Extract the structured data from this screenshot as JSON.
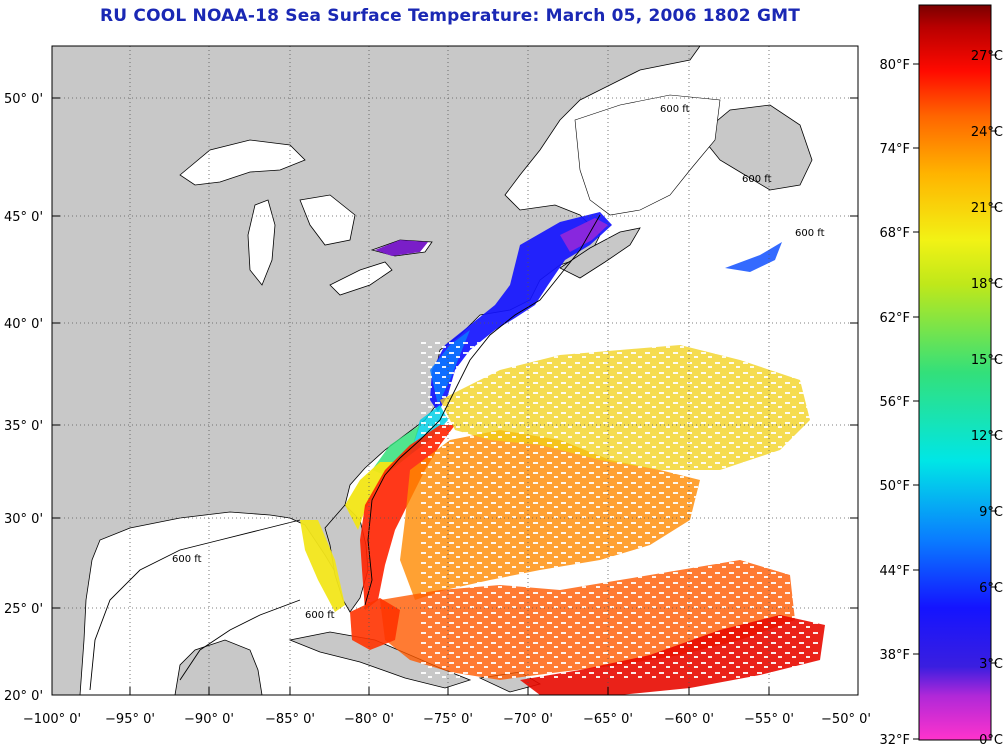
{
  "title": "RU COOL  NOAA-18  Sea Surface Temperature:  March 05, 2006 1802 GMT",
  "axes": {
    "lon_ticks": [
      "−100° 0'",
      "−95° 0'",
      "−90° 0'",
      "−85° 0'",
      "−80° 0'",
      "−75° 0'",
      "−70° 0'",
      "−65° 0'",
      "−60° 0'",
      "−55° 0'",
      "−50° 0'"
    ],
    "lat_ticks": [
      "50° 0'",
      "45° 0'",
      "40° 0'",
      "35° 0'",
      "30° 0'",
      "25° 0'",
      "20° 0'"
    ]
  },
  "colorbar": {
    "fahrenheit": [
      "80°F",
      "74°F",
      "68°F",
      "62°F",
      "56°F",
      "50°F",
      "44°F",
      "38°F",
      "32°F"
    ],
    "celsius": [
      "27°C",
      "24°C",
      "21°C",
      "18°C",
      "15°C",
      "12°C",
      "9°C",
      "6°C",
      "3°C",
      "0°C"
    ],
    "stops": [
      "#ff33cc",
      "#7a1ec8",
      "#1414ff",
      "#0a7aff",
      "#00e6e6",
      "#33e07a",
      "#9ee21a",
      "#f2f215",
      "#ffb400",
      "#ff6400",
      "#ff0a00",
      "#b80000",
      "#7a0000"
    ]
  },
  "isobath_label": "600 ft",
  "colors": {
    "land": "#c8c8c8",
    "ocean_cloud": "#ffffff",
    "title": "#1a28b4"
  }
}
